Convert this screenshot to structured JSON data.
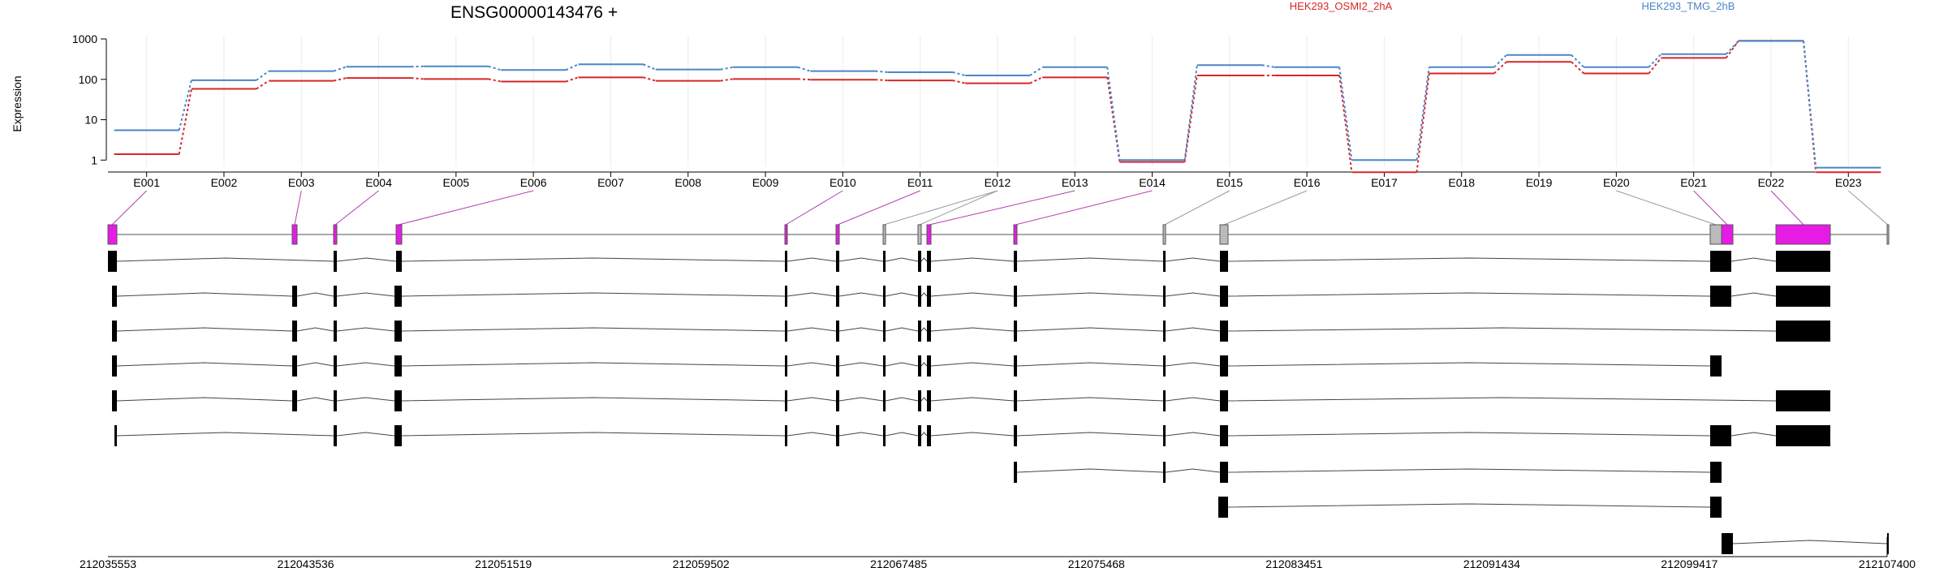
{
  "chart_data": {
    "type": "line",
    "title": "ENSG00000143476 +",
    "ylabel": "Expression",
    "xlabel": "",
    "yscale": "log",
    "ylim": [
      0.7,
      1000
    ],
    "yticks": [
      "1",
      "10",
      "100",
      "1000"
    ],
    "grid": "vertical",
    "legend_position": "top",
    "categories": [
      "E001",
      "E002",
      "E003",
      "E004",
      "E005",
      "E006",
      "E007",
      "E008",
      "E009",
      "E010",
      "E011",
      "E012",
      "E013",
      "E014",
      "E015",
      "E016",
      "E017",
      "E018",
      "E019",
      "E020",
      "E021",
      "E022",
      "E023"
    ],
    "series": [
      {
        "name": "HEK293_OSMI2_2hA",
        "color": "#d62728",
        "values": [
          1.4,
          58,
          92,
          108,
          102,
          88,
          112,
          92,
          102,
          98,
          94,
          80,
          112,
          0.9,
          125,
          125,
          0.5,
          140,
          270,
          140,
          340,
          900,
          0.5
        ]
      },
      {
        "name": "HEK293_TMG_2hB",
        "color": "#4a86c8",
        "values": [
          5.5,
          95,
          160,
          205,
          210,
          170,
          235,
          175,
          200,
          160,
          150,
          125,
          200,
          1.0,
          225,
          200,
          1.0,
          200,
          400,
          200,
          420,
          890,
          0.65
        ]
      }
    ],
    "genome_axis": {
      "ticks": [
        "212035553",
        "212043536",
        "212051519",
        "212059502",
        "212067485",
        "212075468",
        "212083451",
        "212091434",
        "212099417",
        "212107400"
      ],
      "start": 212035553,
      "end": 212107400
    },
    "exon_highlight_color": "#e61be6",
    "exon_other_color": "#bbbbbb",
    "transcript_color": "#000000"
  }
}
